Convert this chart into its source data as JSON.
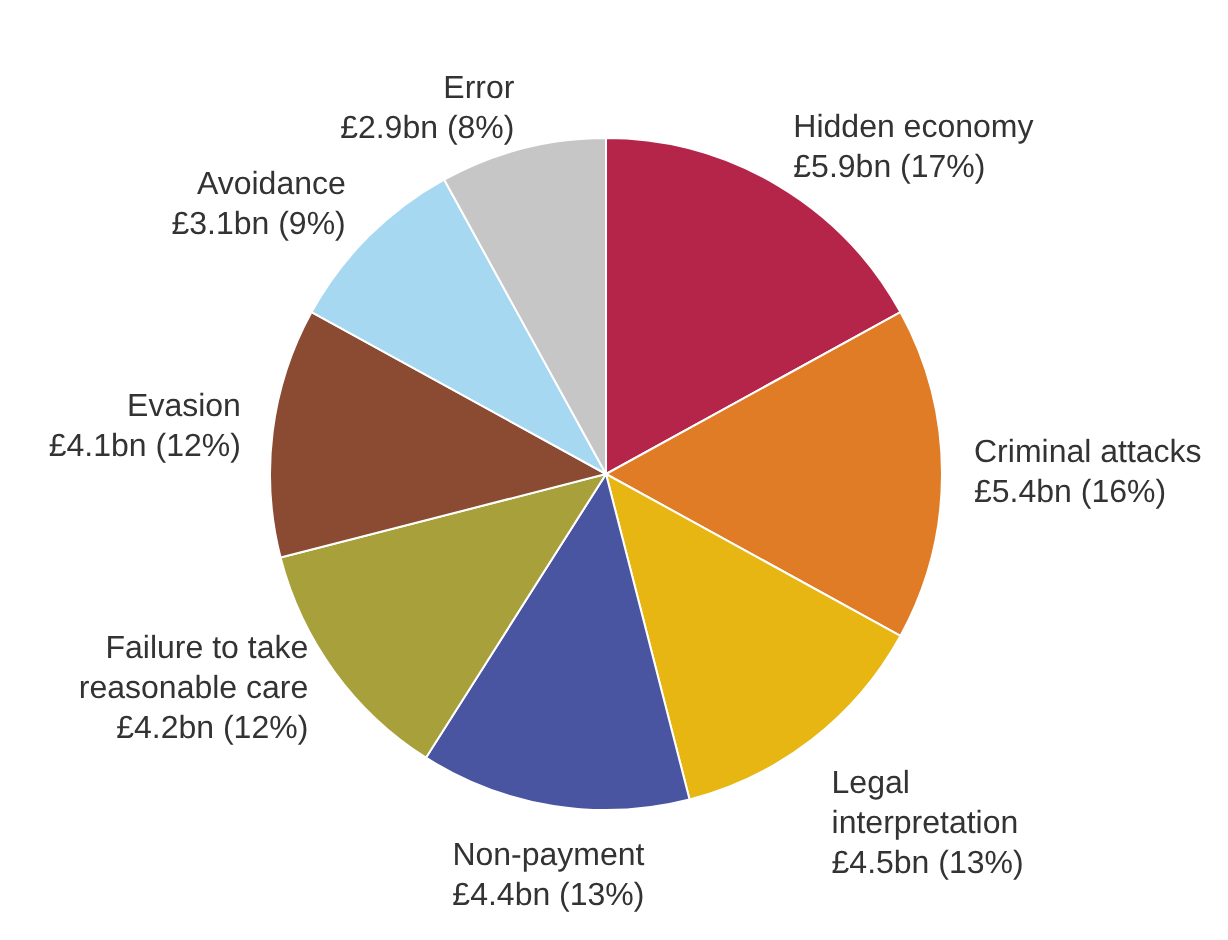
{
  "chart_data": {
    "type": "pie",
    "categories": [
      "Hidden economy",
      "Criminal attacks",
      "Legal interpretation",
      "Non-payment",
      "Failure to take reasonable care",
      "Evasion",
      "Avoidance",
      "Error"
    ],
    "values": [
      17,
      16,
      13,
      13,
      12,
      12,
      9,
      8
    ],
    "value_labels": [
      "£5.9bn (17%)",
      "£5.4bn (16%)",
      "£4.5bn (13%)",
      "£4.4bn (13%)",
      "£4.2bn (12%)",
      "£4.1bn (12%)",
      "£3.1bn (9%)",
      "£2.9bn (8%)"
    ],
    "colors": [
      "#b5254a",
      "#e07c25",
      "#e8b612",
      "#4a55a2",
      "#a8a03a",
      "#8a4b32",
      "#a6d8f2",
      "#c6c6c6"
    ],
    "legend": false
  }
}
